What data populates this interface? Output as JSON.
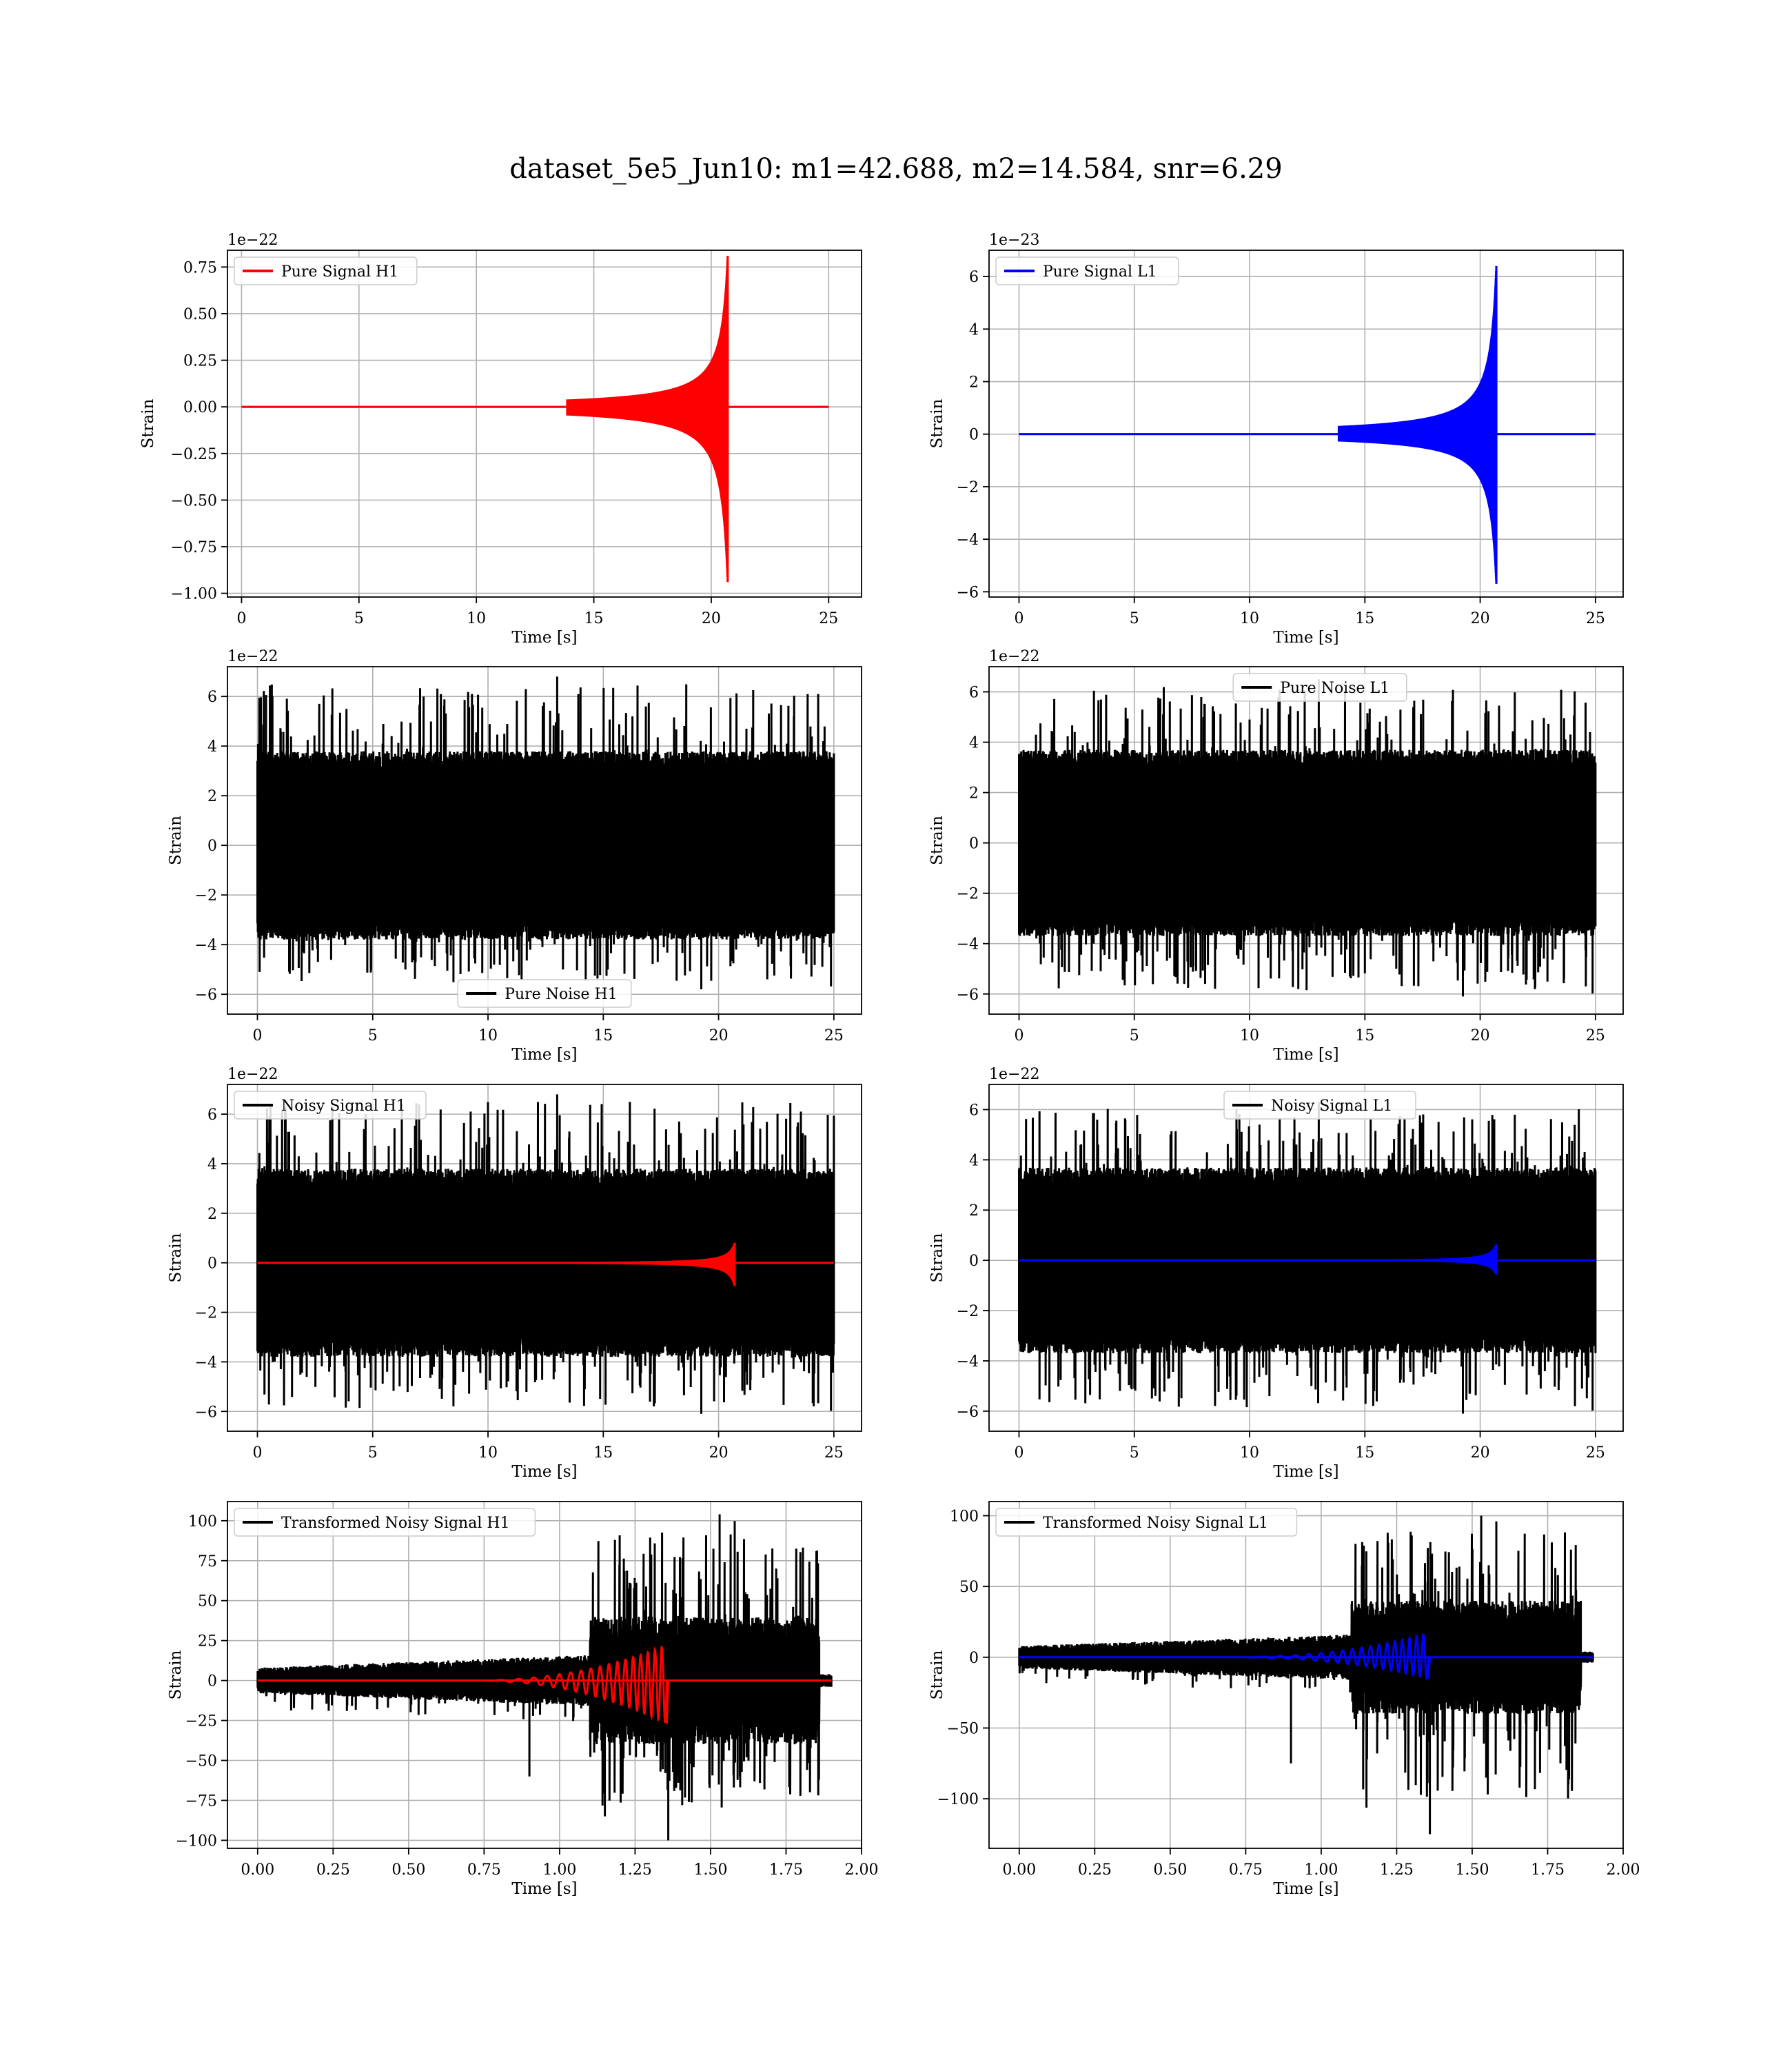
{
  "figure": {
    "title": "dataset_5e5_Jun10: m1=42.688, m2=14.584, snr=6.29"
  },
  "colors": {
    "h1_signal": "#ff0000",
    "l1_signal": "#0000ff",
    "noise": "#000000",
    "grid": "#b0b0b0"
  },
  "chart_data": [
    {
      "type": "line",
      "panel": "row1-left",
      "xlabel": "Time [s]",
      "ylabel": "Strain",
      "exponent": "1e−22",
      "xlim": [
        -0.6,
        26.4
      ],
      "ylim": [
        -1.02,
        0.84
      ],
      "xticks": [
        0,
        5,
        10,
        15,
        20,
        25
      ],
      "xtick_labels": [
        "0",
        "5",
        "10",
        "15",
        "20",
        "25"
      ],
      "yticks": [
        -1.0,
        -0.75,
        -0.5,
        -0.25,
        0.0,
        0.25,
        0.5,
        0.75
      ],
      "ytick_labels": [
        "−1.00",
        "−0.75",
        "−0.50",
        "−0.25",
        "0.00",
        "0.25",
        "0.50",
        "0.75"
      ],
      "legend_position": "upper-left",
      "grid": true,
      "series": [
        {
          "name": "Pure Signal H1",
          "color": "#ff0000",
          "kind": "chirp",
          "x_range": [
            0,
            25
          ],
          "merger": 20.7,
          "peak_pos": 0.81,
          "peak_neg": -0.94
        }
      ]
    },
    {
      "type": "line",
      "panel": "row1-right",
      "xlabel": "Time [s]",
      "ylabel": "Strain",
      "exponent": "1e−23",
      "xlim": [
        -1.3,
        26.2
      ],
      "ylim": [
        -6.2,
        7.0
      ],
      "xticks": [
        0,
        5,
        10,
        15,
        20,
        25
      ],
      "xtick_labels": [
        "0",
        "5",
        "10",
        "15",
        "20",
        "25"
      ],
      "yticks": [
        -6,
        -4,
        -2,
        0,
        2,
        4,
        6
      ],
      "ytick_labels": [
        "−6",
        "−4",
        "−2",
        "0",
        "2",
        "4",
        "6"
      ],
      "legend_position": "upper-left",
      "grid": true,
      "series": [
        {
          "name": "Pure Signal L1",
          "color": "#0000ff",
          "kind": "chirp",
          "x_range": [
            0,
            25
          ],
          "merger": 20.7,
          "peak_pos": 6.4,
          "peak_neg": -5.7
        }
      ]
    },
    {
      "type": "line",
      "panel": "row2-left",
      "xlabel": "Time [s]",
      "ylabel": "Strain",
      "exponent": "1e−22",
      "xlim": [
        -1.3,
        26.2
      ],
      "ylim": [
        -6.8,
        7.2
      ],
      "xticks": [
        0,
        5,
        10,
        15,
        20,
        25
      ],
      "xtick_labels": [
        "0",
        "5",
        "10",
        "15",
        "20",
        "25"
      ],
      "yticks": [
        -6,
        -4,
        -2,
        0,
        2,
        4,
        6
      ],
      "ytick_labels": [
        "−6",
        "−4",
        "−2",
        "0",
        "2",
        "4",
        "6"
      ],
      "legend_position": "lower-center",
      "grid": true,
      "series": [
        {
          "name": "Pure Noise H1",
          "color": "#000000",
          "kind": "noise",
          "x_range": [
            0,
            25
          ],
          "band": 3.8,
          "max": 6.8,
          "min": -5.8
        }
      ]
    },
    {
      "type": "line",
      "panel": "row2-right",
      "xlabel": "Time [s]",
      "ylabel": "Strain",
      "exponent": "1e−22",
      "xlim": [
        -1.3,
        26.2
      ],
      "ylim": [
        -6.8,
        7.0
      ],
      "xticks": [
        0,
        5,
        10,
        15,
        20,
        25
      ],
      "xtick_labels": [
        "0",
        "5",
        "10",
        "15",
        "20",
        "25"
      ],
      "yticks": [
        -6,
        -4,
        -2,
        0,
        2,
        4,
        6
      ],
      "ytick_labels": [
        "−6",
        "−4",
        "−2",
        "0",
        "2",
        "4",
        "6"
      ],
      "legend_position": "upper-center",
      "grid": true,
      "series": [
        {
          "name": "Pure Noise L1",
          "color": "#000000",
          "kind": "noise",
          "x_range": [
            0,
            25
          ],
          "band": 3.7,
          "max": 6.5,
          "min": -6.1
        }
      ]
    },
    {
      "type": "line",
      "panel": "row3-left",
      "xlabel": "Time [s]",
      "ylabel": "Strain",
      "exponent": "1e−22",
      "xlim": [
        -1.3,
        26.2
      ],
      "ylim": [
        -6.8,
        7.2
      ],
      "xticks": [
        0,
        5,
        10,
        15,
        20,
        25
      ],
      "xtick_labels": [
        "0",
        "5",
        "10",
        "15",
        "20",
        "25"
      ],
      "yticks": [
        -6,
        -4,
        -2,
        0,
        2,
        4,
        6
      ],
      "ytick_labels": [
        "−6",
        "−4",
        "−2",
        "0",
        "2",
        "4",
        "6"
      ],
      "legend_position": "upper-left",
      "grid": true,
      "series": [
        {
          "name": "Noisy Signal H1",
          "color": "#000000",
          "kind": "noise",
          "x_range": [
            0,
            25
          ],
          "band": 3.8,
          "max": 6.8,
          "min": -6.1
        },
        {
          "name": "",
          "color": "#ff0000",
          "kind": "chirp",
          "x_range": [
            0,
            25
          ],
          "merger": 20.7,
          "peak_pos": 0.81,
          "peak_neg": -0.94
        }
      ]
    },
    {
      "type": "line",
      "panel": "row3-right",
      "xlabel": "Time [s]",
      "ylabel": "Strain",
      "exponent": "1e−22",
      "xlim": [
        -1.3,
        26.2
      ],
      "ylim": [
        -6.8,
        7.0
      ],
      "xticks": [
        0,
        5,
        10,
        15,
        20,
        25
      ],
      "xtick_labels": [
        "0",
        "5",
        "10",
        "15",
        "20",
        "25"
      ],
      "yticks": [
        -6,
        -4,
        -2,
        0,
        2,
        4,
        6
      ],
      "ytick_labels": [
        "−6",
        "−4",
        "−2",
        "0",
        "2",
        "4",
        "6"
      ],
      "legend_position": "upper-center",
      "grid": true,
      "series": [
        {
          "name": "Noisy Signal L1",
          "color": "#000000",
          "kind": "noise",
          "x_range": [
            0,
            25
          ],
          "band": 3.7,
          "max": 6.3,
          "min": -6.1
        },
        {
          "name": "",
          "color": "#0000ff",
          "kind": "chirp",
          "x_range": [
            0,
            25
          ],
          "merger": 20.7,
          "peak_pos": 0.64,
          "peak_neg": -0.57
        }
      ]
    },
    {
      "type": "line",
      "panel": "row4-left",
      "xlabel": "Time [s]",
      "ylabel": "Strain",
      "exponent": "",
      "xlim": [
        -0.1,
        2.0
      ],
      "ylim": [
        -105,
        112
      ],
      "xticks": [
        0.0,
        0.25,
        0.5,
        0.75,
        1.0,
        1.25,
        1.5,
        1.75,
        2.0
      ],
      "xtick_labels": [
        "0.00",
        "0.25",
        "0.50",
        "0.75",
        "1.00",
        "1.25",
        "1.50",
        "1.75",
        "2.00"
      ],
      "yticks": [
        -100,
        -75,
        -50,
        -25,
        0,
        25,
        50,
        75,
        100
      ],
      "ytick_labels": [
        "−100",
        "−75",
        "−50",
        "−25",
        "0",
        "25",
        "50",
        "75",
        "100"
      ],
      "legend_position": "upper-left",
      "grid": true,
      "series": [
        {
          "name": "Transformed Noisy Signal H1",
          "color": "#000000",
          "kind": "transformed",
          "x_range": [
            0,
            1.9
          ],
          "onset": 1.1,
          "max": 104,
          "min": -100
        },
        {
          "name": "",
          "color": "#ff0000",
          "kind": "tchirp",
          "x_range": [
            0,
            1.9
          ],
          "merger": 1.355,
          "peak_pos": 22,
          "peak_neg": -27
        }
      ]
    },
    {
      "type": "line",
      "panel": "row4-right",
      "xlabel": "Time [s]",
      "ylabel": "Strain",
      "exponent": "",
      "xlim": [
        -0.1,
        2.0
      ],
      "ylim": [
        -135,
        110
      ],
      "xticks": [
        0.0,
        0.25,
        0.5,
        0.75,
        1.0,
        1.25,
        1.5,
        1.75,
        2.0
      ],
      "xtick_labels": [
        "0.00",
        "0.25",
        "0.50",
        "0.75",
        "1.00",
        "1.25",
        "1.50",
        "1.75",
        "2.00"
      ],
      "yticks": [
        -100,
        -50,
        0,
        50,
        100
      ],
      "ytick_labels": [
        "−100",
        "−50",
        "0",
        "50",
        "100"
      ],
      "legend_position": "upper-left",
      "grid": true,
      "series": [
        {
          "name": "Transformed Noisy Signal L1",
          "color": "#000000",
          "kind": "transformed",
          "x_range": [
            0,
            1.9
          ],
          "onset": 1.1,
          "max": 100,
          "min": -125
        },
        {
          "name": "",
          "color": "#0000ff",
          "kind": "tchirp",
          "x_range": [
            0,
            1.9
          ],
          "merger": 1.355,
          "peak_pos": 17,
          "peak_neg": -15
        }
      ]
    }
  ]
}
